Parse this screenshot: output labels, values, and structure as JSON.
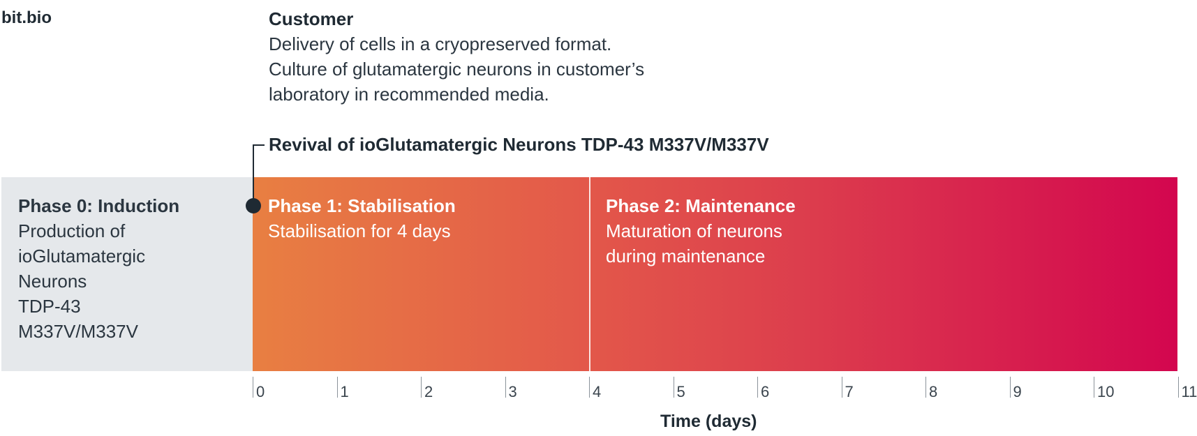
{
  "brand": "bit.bio",
  "customer": {
    "title": "Customer",
    "lines": [
      "Delivery of cells in a cryopreserved format.",
      "Culture of glutamatergic neurons in customer’s",
      "laboratory in recommended media."
    ]
  },
  "revival_label": "Revival of ioGlutamatergic Neurons TDP-43 M337V/M337V",
  "phase0": {
    "title": "Phase 0: Induction",
    "lines": [
      "Production of",
      "ioGlutamatergic",
      "Neurons",
      "TDP-43",
      "M337V/M337V"
    ]
  },
  "phase1": {
    "title": "Phase 1: Stabilisation",
    "lines": [
      "Stabilisation for 4 days"
    ],
    "start_day": 0,
    "end_day": 4
  },
  "phase2": {
    "title": "Phase 2: Maintenance",
    "lines": [
      "Maturation of neurons",
      "during maintenance"
    ],
    "start_day": 4,
    "end_day": 11
  },
  "axis": {
    "label": "Time (days)",
    "ticks": [
      "0",
      "1",
      "2",
      "3",
      "4",
      "5",
      "6",
      "7",
      "8",
      "9",
      "10",
      "11"
    ]
  },
  "colors": {
    "gradient_start": "#e87f42",
    "gradient_end": "#d3064f",
    "phase0_bg": "#e5e8eb",
    "text_dark": "#1f2a33"
  }
}
